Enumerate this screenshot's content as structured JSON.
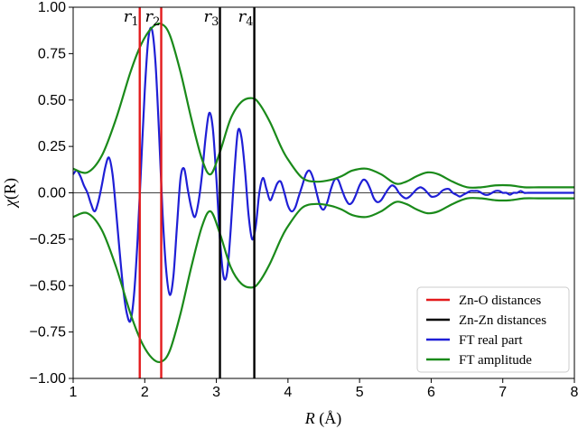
{
  "chart_data": {
    "type": "line",
    "xlabel_var": "R",
    "xlabel_unit": " (Å)",
    "ylabel_var": "χ",
    "ylabel_arg": "(R)",
    "xlim": [
      1,
      8
    ],
    "ylim": [
      -1.0,
      1.0
    ],
    "xticks": [
      1,
      2,
      3,
      4,
      5,
      6,
      7,
      8
    ],
    "xtick_labels": [
      "1",
      "2",
      "3",
      "4",
      "5",
      "6",
      "7",
      "8"
    ],
    "yticks": [
      1.0,
      0.75,
      0.5,
      0.25,
      0.0,
      -0.25,
      -0.5,
      -0.75,
      -1.0
    ],
    "ytick_labels": [
      "1.00",
      "0.75",
      "0.50",
      "0.25",
      "0.00",
      "−0.25",
      "−0.50",
      "−0.75",
      "−1.00"
    ],
    "grid": false,
    "zero_line": true,
    "legend_position": "lower right",
    "vertical_markers": [
      {
        "label_base": "r",
        "label_sub": "1",
        "x": 1.93,
        "color": "#e31a1c",
        "group": "Zn-O  distances"
      },
      {
        "label_base": "r",
        "label_sub": "2",
        "x": 2.23,
        "color": "#e31a1c",
        "group": "Zn-O  distances"
      },
      {
        "label_base": "r",
        "label_sub": "3",
        "x": 3.05,
        "color": "#000000",
        "group": "Zn-Zn distances"
      },
      {
        "label_base": "r",
        "label_sub": "4",
        "x": 3.53,
        "color": "#000000",
        "group": "Zn-Zn distances"
      }
    ],
    "series": [
      {
        "name": "FT real part",
        "color": "#1f1fd6",
        "x": [
          1.0,
          1.05,
          1.1,
          1.15,
          1.2,
          1.25,
          1.3,
          1.35,
          1.4,
          1.45,
          1.5,
          1.55,
          1.6,
          1.65,
          1.7,
          1.75,
          1.8,
          1.85,
          1.9,
          1.95,
          2.0,
          2.05,
          2.1,
          2.15,
          2.2,
          2.25,
          2.3,
          2.35,
          2.4,
          2.45,
          2.5,
          2.55,
          2.6,
          2.65,
          2.7,
          2.75,
          2.8,
          2.85,
          2.9,
          2.95,
          3.0,
          3.05,
          3.1,
          3.15,
          3.2,
          3.25,
          3.3,
          3.35,
          3.4,
          3.45,
          3.5,
          3.55,
          3.6,
          3.65,
          3.7,
          3.75,
          3.8,
          3.85,
          3.9,
          3.95,
          4.0,
          4.05,
          4.1,
          4.15,
          4.2,
          4.25,
          4.3,
          4.35,
          4.4,
          4.45,
          4.5,
          4.55,
          4.6,
          4.65,
          4.7,
          4.75,
          4.8,
          4.85,
          4.9,
          4.95,
          5.0,
          5.05,
          5.1,
          5.15,
          5.2,
          5.25,
          5.3,
          5.35,
          5.4,
          5.45,
          5.5,
          5.55,
          5.6,
          5.65,
          5.7,
          5.75,
          5.8,
          5.85,
          5.9,
          5.95,
          6.0,
          6.05,
          6.1,
          6.15,
          6.2,
          6.25,
          6.3,
          6.35,
          6.4,
          6.45,
          6.5,
          6.55,
          6.6,
          6.65,
          6.7,
          6.75,
          6.8,
          6.85,
          6.9,
          6.95,
          7.0,
          7.05,
          7.1,
          7.15,
          7.2,
          7.25,
          7.3,
          7.35,
          7.4,
          7.45,
          7.5,
          7.55,
          7.6,
          7.65,
          7.7,
          7.75,
          7.8,
          7.85,
          7.9,
          7.95,
          8.0
        ],
        "values": [
          0.1,
          0.12,
          0.09,
          0.04,
          0.0,
          -0.06,
          -0.1,
          -0.05,
          0.04,
          0.14,
          0.19,
          0.1,
          -0.1,
          -0.32,
          -0.52,
          -0.65,
          -0.69,
          -0.55,
          -0.25,
          0.15,
          0.55,
          0.83,
          0.88,
          0.7,
          0.32,
          -0.12,
          -0.42,
          -0.55,
          -0.45,
          -0.18,
          0.08,
          0.13,
          0.02,
          -0.08,
          -0.13,
          -0.05,
          0.1,
          0.3,
          0.43,
          0.35,
          0.08,
          -0.25,
          -0.45,
          -0.43,
          -0.2,
          0.1,
          0.33,
          0.3,
          0.12,
          -0.12,
          -0.25,
          -0.18,
          0.0,
          0.08,
          0.02,
          -0.04,
          0.0,
          0.05,
          0.06,
          0.0,
          -0.07,
          -0.1,
          -0.08,
          -0.02,
          0.04,
          0.1,
          0.12,
          0.08,
          0.0,
          -0.07,
          -0.09,
          -0.05,
          0.02,
          0.07,
          0.07,
          0.02,
          -0.03,
          -0.06,
          -0.05,
          -0.01,
          0.04,
          0.07,
          0.06,
          0.02,
          -0.03,
          -0.05,
          -0.04,
          -0.01,
          0.02,
          0.04,
          0.03,
          0.0,
          -0.02,
          -0.03,
          -0.02,
          0.0,
          0.02,
          0.03,
          0.02,
          0.0,
          -0.02,
          -0.02,
          -0.01,
          0.01,
          0.02,
          0.02,
          0.0,
          -0.01,
          -0.02,
          -0.01,
          0.0,
          0.01,
          0.01,
          0.01,
          0.0,
          -0.01,
          -0.01,
          0.0,
          0.01,
          0.01,
          0.0,
          0.0,
          -0.01,
          0.0,
          0.0,
          0.01,
          0.0,
          0.0,
          0.0,
          0.0,
          0.0,
          0.0,
          0.0,
          0.0,
          0.0,
          0.0,
          0.0,
          0.0,
          0.0,
          0.0,
          0.0
        ]
      },
      {
        "name": "FT amplitude",
        "color": "#1a8a1a",
        "x": [
          1.0,
          1.2,
          1.4,
          1.6,
          1.8,
          1.95,
          2.1,
          2.23,
          2.35,
          2.5,
          2.65,
          2.8,
          2.92,
          3.05,
          3.2,
          3.35,
          3.5,
          3.6,
          3.75,
          3.9,
          4.0,
          4.2,
          4.4,
          4.6,
          4.75,
          4.9,
          5.1,
          5.3,
          5.5,
          5.65,
          5.8,
          5.95,
          6.1,
          6.3,
          6.5,
          6.7,
          6.9,
          7.1,
          7.3,
          7.5,
          7.7,
          7.9,
          8.0
        ],
        "upper": [
          0.13,
          0.11,
          0.2,
          0.4,
          0.65,
          0.8,
          0.89,
          0.91,
          0.85,
          0.65,
          0.4,
          0.18,
          0.1,
          0.22,
          0.4,
          0.49,
          0.51,
          0.48,
          0.38,
          0.25,
          0.18,
          0.08,
          0.06,
          0.07,
          0.09,
          0.12,
          0.13,
          0.1,
          0.05,
          0.06,
          0.09,
          0.11,
          0.1,
          0.06,
          0.03,
          0.03,
          0.04,
          0.04,
          0.03,
          0.03,
          0.03,
          0.03,
          0.03
        ],
        "lower": [
          -0.13,
          -0.11,
          -0.2,
          -0.4,
          -0.65,
          -0.8,
          -0.89,
          -0.91,
          -0.85,
          -0.65,
          -0.4,
          -0.18,
          -0.1,
          -0.22,
          -0.4,
          -0.49,
          -0.51,
          -0.48,
          -0.38,
          -0.25,
          -0.18,
          -0.08,
          -0.06,
          -0.07,
          -0.09,
          -0.12,
          -0.13,
          -0.1,
          -0.05,
          -0.06,
          -0.09,
          -0.11,
          -0.1,
          -0.06,
          -0.03,
          -0.03,
          -0.04,
          -0.04,
          -0.03,
          -0.03,
          -0.03,
          -0.03,
          -0.03
        ]
      }
    ],
    "legend": [
      {
        "label": "Zn-O  distances",
        "color": "#e31a1c"
      },
      {
        "label": "Zn-Zn distances",
        "color": "#000000"
      },
      {
        "label": "FT real part",
        "color": "#1f1fd6"
      },
      {
        "label": "FT amplitude",
        "color": "#1a8a1a"
      }
    ]
  }
}
